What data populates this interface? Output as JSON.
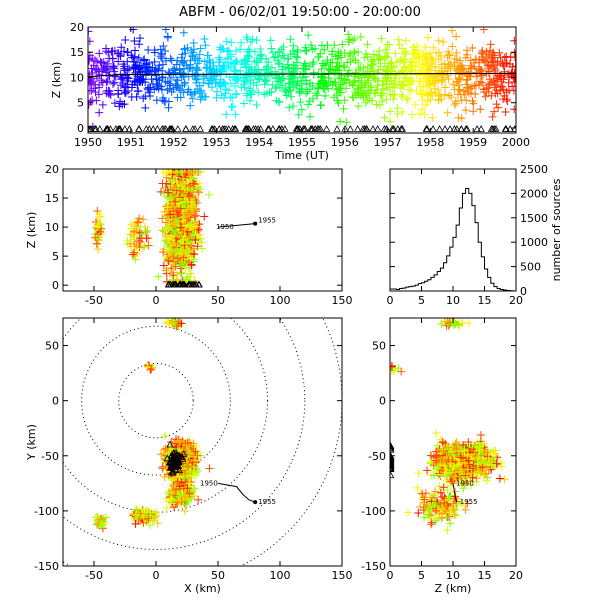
{
  "title": "ABFM - 06/02/01 19:50:00 - 20:00:00",
  "chart_data": [
    {
      "id": "time-height",
      "type": "scatter",
      "xlabel": "Time (UT)",
      "ylabel": "Z (km)",
      "xlim": [
        1950,
        2000
      ],
      "ylim": [
        -1,
        20
      ],
      "xticks": [
        "1950",
        "1951",
        "1952",
        "1953",
        "1954",
        "1955",
        "1956",
        "1957",
        "1958",
        "1959",
        "2000"
      ],
      "yticks": [
        "0",
        "5",
        "10",
        "15",
        "20"
      ],
      "points_color": "time (rainbow)",
      "mean_height_line": {
        "x": [
          1950,
          1952,
          1954,
          1956,
          1958,
          2000
        ],
        "y": [
          10.1,
          10.4,
          10.6,
          10.6,
          10.6,
          10.8
        ]
      },
      "ground_markers": "triangle"
    },
    {
      "id": "x-z",
      "type": "scatter",
      "xlabel": "",
      "ylabel": "Z (km)",
      "xlim": [
        -75,
        150
      ],
      "ylim": [
        -1,
        20
      ],
      "xticks": [
        "-50",
        "0",
        "50",
        "100",
        "150"
      ],
      "yticks": [
        "0",
        "5",
        "10",
        "15",
        "20"
      ],
      "clusters": [
        {
          "x": 22,
          "z": 11.5,
          "sx": 9,
          "sz": 5,
          "n": 900
        },
        {
          "x": 12,
          "z": 10,
          "sx": 5,
          "sz": 5,
          "n": 150
        },
        {
          "x": -47,
          "z": 9.5,
          "sx": 3,
          "sz": 1.5,
          "n": 30
        },
        {
          "x": -15,
          "z": 8,
          "sx": 7,
          "sz": 2,
          "n": 50
        }
      ],
      "track": {
        "x": [
          50,
          65,
          80
        ],
        "z": [
          10,
          10.3,
          10.6
        ]
      },
      "track_labels": [
        "1950",
        "1955"
      ]
    },
    {
      "id": "height-histogram",
      "type": "bar",
      "xlabel": "",
      "ylabel": "number of sources",
      "xlim": [
        0,
        20
      ],
      "ylim": [
        0,
        2500
      ],
      "xticks": [
        "0",
        "5",
        "10",
        "15",
        "20"
      ],
      "yticks": [
        "0",
        "500",
        "1000",
        "1500",
        "2000",
        "2500"
      ],
      "bins": [
        0.5,
        1.0,
        1.5,
        2.0,
        2.5,
        3.0,
        3.5,
        4.0,
        4.5,
        5.0,
        5.5,
        6.0,
        6.5,
        7.0,
        7.5,
        8.0,
        8.5,
        9.0,
        9.5,
        10.0,
        10.5,
        11.0,
        11.5,
        12.0,
        12.5,
        13.0,
        13.5,
        14.0,
        14.5,
        15.0,
        15.5,
        16.0,
        16.5,
        17.0,
        17.5,
        18.0,
        18.5,
        19.0,
        19.5,
        20.0
      ],
      "values": [
        40,
        40,
        30,
        50,
        60,
        80,
        90,
        100,
        120,
        150,
        170,
        200,
        230,
        280,
        330,
        400,
        470,
        580,
        720,
        900,
        1100,
        1350,
        1700,
        2000,
        2100,
        2000,
        1750,
        1400,
        1000,
        700,
        450,
        280,
        160,
        90,
        50,
        30,
        20,
        10,
        5,
        0
      ]
    },
    {
      "id": "x-y",
      "type": "scatter",
      "xlabel": "X (km)",
      "ylabel": "Y (km)",
      "xlim": [
        -75,
        150
      ],
      "ylim": [
        -150,
        75
      ],
      "xticks": [
        "-50",
        "0",
        "50",
        "100",
        "150"
      ],
      "yticks": [
        "-150",
        "-100",
        "-50",
        "0",
        "50"
      ],
      "range_rings_km": [
        30,
        60,
        90,
        120,
        150
      ],
      "clusters": [
        {
          "x": 20,
          "y": -55,
          "sx": 9,
          "sy": 12,
          "n": 900
        },
        {
          "x": 20,
          "y": -85,
          "sx": 8,
          "sy": 10,
          "n": 150
        },
        {
          "x": -10,
          "y": -105,
          "sx": 8,
          "sy": 6,
          "n": 90
        },
        {
          "x": -45,
          "y": -110,
          "sx": 3,
          "sy": 5,
          "n": 30
        },
        {
          "x": 15,
          "y": 70,
          "sx": 5,
          "sy": 2,
          "n": 30
        },
        {
          "x": -5,
          "y": 30,
          "sx": 2,
          "sy": 2,
          "n": 10
        }
      ],
      "track": {
        "x": [
          50,
          65,
          70,
          75,
          80
        ],
        "y": [
          -75,
          -78,
          -85,
          -90,
          -92
        ]
      },
      "track_labels": [
        "1950",
        "1955"
      ]
    },
    {
      "id": "z-y",
      "type": "scatter",
      "xlabel": "Z (km)",
      "ylabel": "",
      "xlim": [
        0,
        20
      ],
      "ylim": [
        -150,
        75
      ],
      "xticks": [
        "0",
        "5",
        "10",
        "15",
        "20"
      ],
      "yticks": [
        "-150",
        "-100",
        "-50",
        "0",
        "50"
      ],
      "clusters": [
        {
          "z": 11.5,
          "y": -55,
          "sz": 3.5,
          "sy": 12,
          "n": 900
        },
        {
          "z": 8,
          "y": -95,
          "sz": 3,
          "sy": 12,
          "n": 140
        },
        {
          "z": 10,
          "y": 70,
          "sz": 2,
          "sy": 2,
          "n": 25
        },
        {
          "z": 1,
          "y": 30,
          "sz": 1,
          "sy": 3,
          "n": 10
        }
      ],
      "track": {
        "z": [
          10,
          10.3,
          10.6
        ],
        "y": [
          -75,
          -85,
          -92
        ]
      },
      "track_labels": [
        "1950",
        "1955"
      ]
    }
  ]
}
